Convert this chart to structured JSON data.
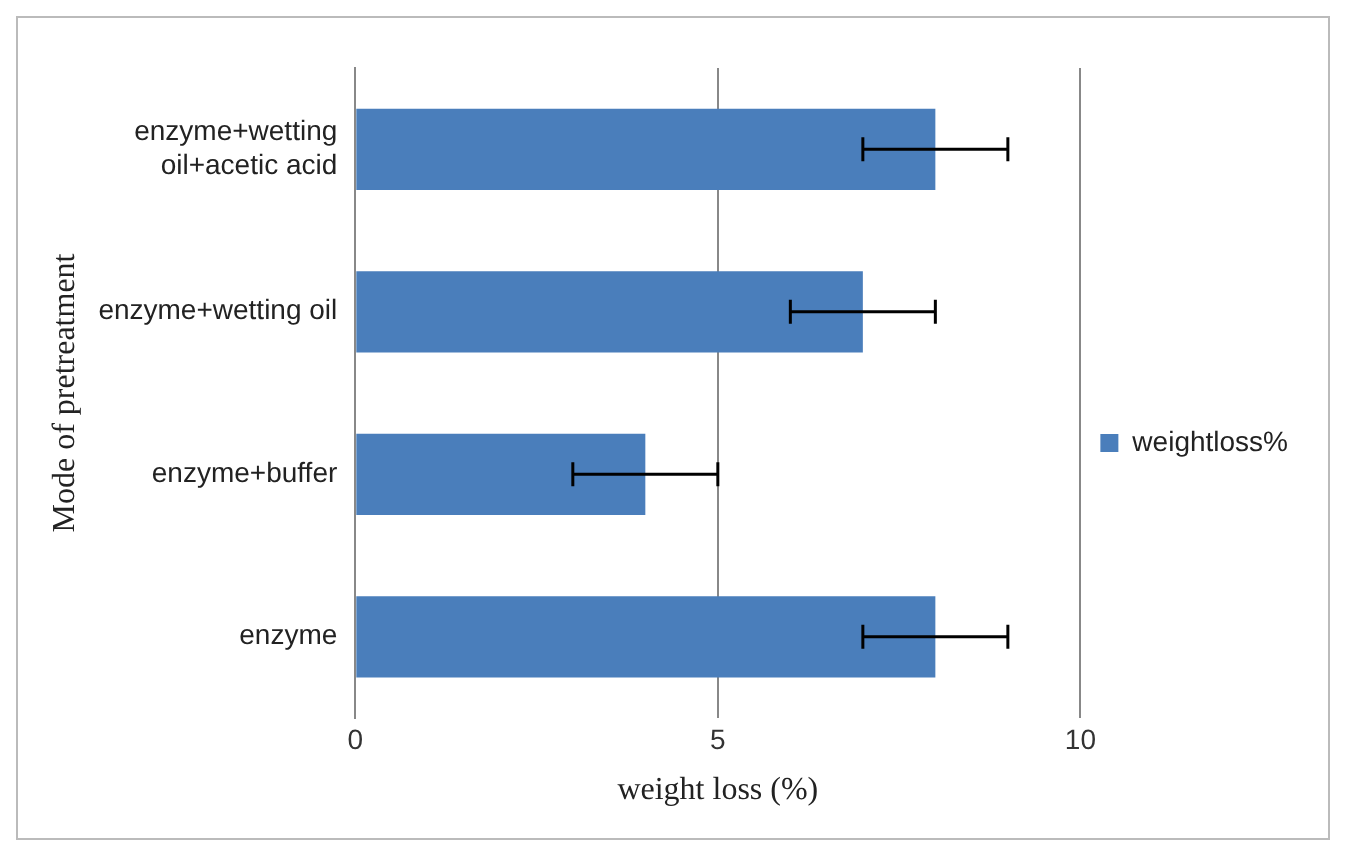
{
  "chart_data": {
    "type": "bar",
    "orientation": "horizontal",
    "xlabel": "weight loss (%)",
    "ylabel": "Mode of pretreatment",
    "categories": [
      "enzyme+wetting oil+acetic acid",
      "enzyme+wetting oil",
      "enzyme+buffer",
      "enzyme"
    ],
    "series": [
      {
        "name": "weightloss%",
        "color": "#4a7ebb",
        "values": [
          8,
          7,
          4,
          8
        ],
        "errors": [
          1,
          1,
          1,
          1
        ]
      }
    ],
    "xlim": [
      0,
      10
    ],
    "xticks": [
      0,
      5,
      10
    ],
    "grid": "x",
    "legend": "right"
  }
}
